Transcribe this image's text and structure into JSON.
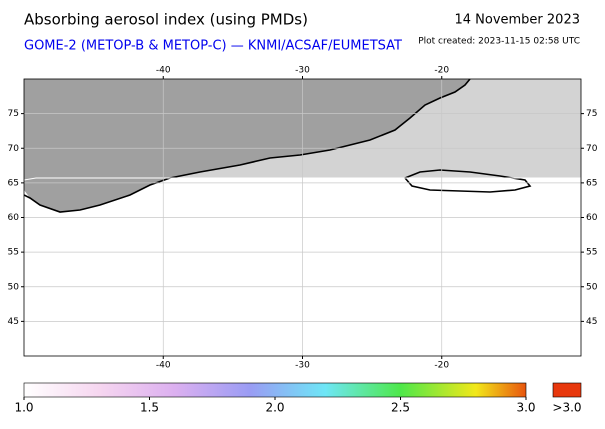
{
  "header": {
    "title": "Absorbing aerosol index (using PMDs)",
    "date": "14 November 2023",
    "subtitle": "GOME-2 (METOP-B & METOP-C) — KNMI/ACSAF/EUMETSAT",
    "created": "Plot created: 2023-11-15 02:58 UTC"
  },
  "map": {
    "lonlim": [
      -50,
      -10
    ],
    "latlim": [
      40,
      80
    ],
    "lon_ticks": [
      -40,
      -30,
      -20
    ],
    "lat_ticks": [
      45,
      50,
      55,
      60,
      65,
      70,
      75
    ],
    "grid": true
  },
  "colorbar": {
    "lim": [
      1,
      3
    ],
    "ticks": [
      {
        "value": 1,
        "label": "1.0"
      },
      1.5,
      {
        "value": 2,
        "label": "2.0"
      },
      2.5,
      {
        "value": 3,
        "label": "3.0"
      }
    ],
    "over_label": ">3.0"
  }
}
